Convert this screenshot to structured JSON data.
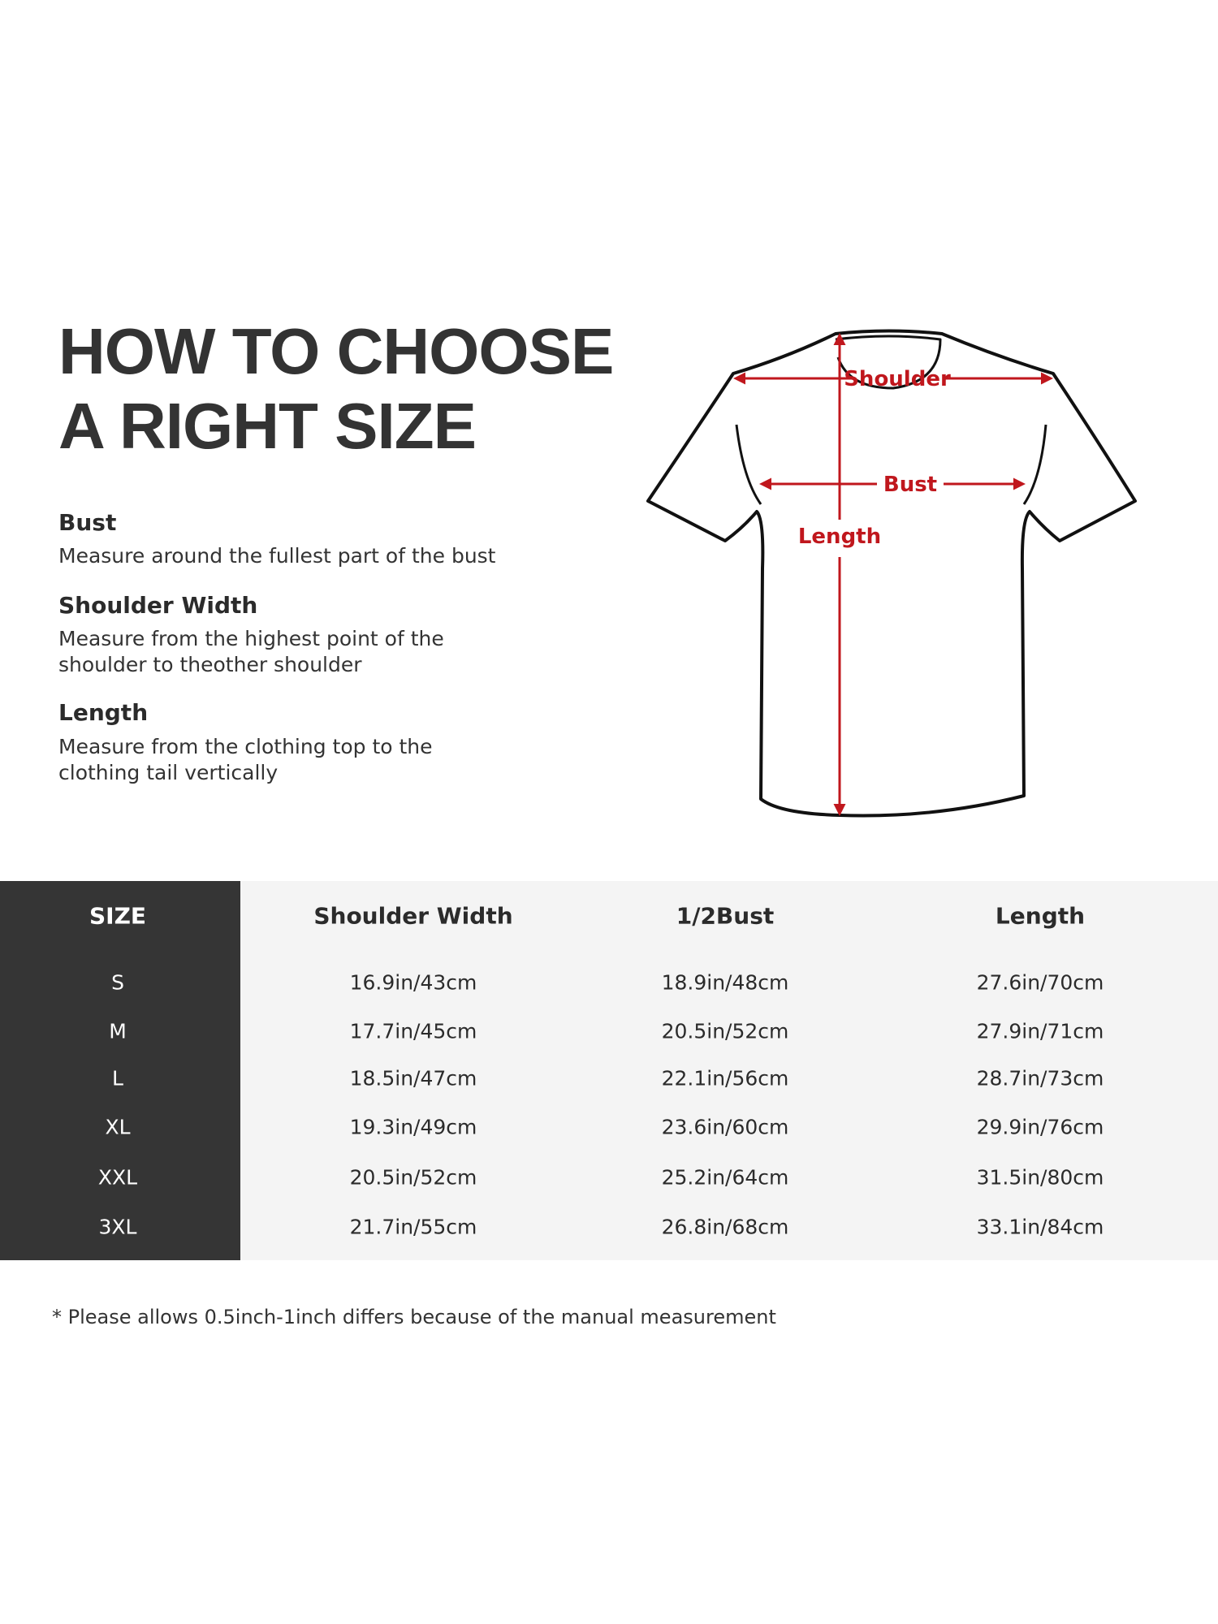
{
  "title": {
    "line1": "HOW TO CHOOSE",
    "line2": "A RIGHT SIZE"
  },
  "guide": [
    {
      "heading": "Bust",
      "lines": [
        "Measure around the fullest part of the bust"
      ]
    },
    {
      "heading": "Shoulder Width",
      "lines": [
        "Measure from the highest point of the",
        "shoulder to theother shoulder"
      ]
    },
    {
      "heading": "Length",
      "lines": [
        "Measure from the clothing top to the",
        "clothing tail vertically"
      ]
    }
  ],
  "diagram": {
    "labels": {
      "shoulder": "Shoulder",
      "bust": "Bust",
      "length": "Length"
    },
    "arrow_color": "#c0171d"
  },
  "table": {
    "headers": [
      "SIZE",
      "Shoulder Width",
      "1/2Bust",
      "Length"
    ],
    "rows": [
      [
        "S",
        "16.9in/43cm",
        "18.9in/48cm",
        "27.6in/70cm"
      ],
      [
        "M",
        "17.7in/45cm",
        "20.5in/52cm",
        "27.9in/71cm"
      ],
      [
        "L",
        "18.5in/47cm",
        "22.1in/56cm",
        "28.7in/73cm"
      ],
      [
        "XL",
        "19.3in/49cm",
        "23.6in/60cm",
        "29.9in/76cm"
      ],
      [
        "XXL",
        "20.5in/52cm",
        "25.2in/64cm",
        "31.5in/80cm"
      ],
      [
        "3XL",
        "21.7in/55cm",
        "26.8in/68cm",
        "33.1in/84cm"
      ]
    ],
    "size_column_color": "#353535",
    "body_color": "#f4f4f4"
  },
  "footnote": "* Please allows 0.5inch-1inch differs because of the  manual measurement"
}
